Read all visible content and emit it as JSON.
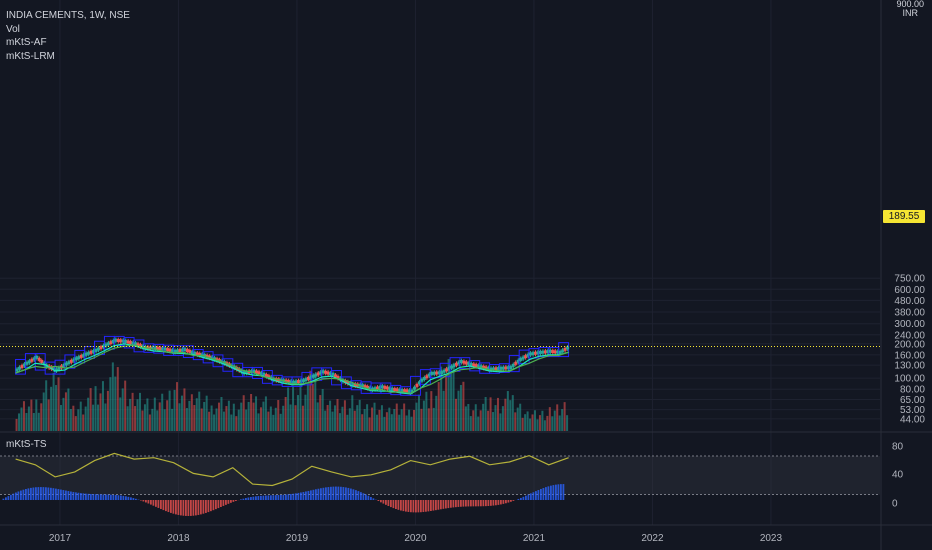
{
  "legend": {
    "symbol": "INDIA CEMENTS, 1W, NSE",
    "studies": [
      "Vol",
      "mKtS-AF",
      "mKtS-LRM"
    ]
  },
  "indicator_label": "mKtS-TS",
  "currency": {
    "top": "900.00",
    "unit": "INR"
  },
  "last_price": "189.55",
  "colors": {
    "background": "#131722",
    "grid": "#1e2230",
    "up": "#26a69a",
    "down": "#ef5350",
    "box": "#2525ff",
    "line_fast": "#1de9b6",
    "line_slow": "#4caf50",
    "osc": "#b5b23a",
    "price_tag": "#f5e533"
  },
  "chart_data": [
    {
      "type": "line",
      "title": "INDIA CEMENTS, 1W, NSE",
      "scale": "log",
      "y_ticks": [
        "750.00",
        "600.00",
        "480.00",
        "380.00",
        "300.00",
        "240.00",
        "200.00",
        "160.00",
        "130.00",
        "100.00",
        "80.00",
        "65.00",
        "53.00",
        "44.00"
      ],
      "x_ticks": [
        "2017",
        "2018",
        "2019",
        "2020",
        "2021",
        "2022",
        "2023"
      ],
      "series": [
        {
          "points": [
            [
              "2016-08",
              118
            ],
            [
              "2016-09",
              135
            ],
            [
              "2016-10",
              152
            ],
            [
              "2016-11",
              128
            ],
            [
              "2016-12",
              118
            ],
            [
              "2017-01",
              133
            ],
            [
              "2017-02",
              148
            ],
            [
              "2017-03",
              162
            ],
            [
              "2017-04",
              175
            ],
            [
              "2017-05",
              195
            ],
            [
              "2017-06",
              215
            ],
            [
              "2017-07",
              210
            ],
            [
              "2017-08",
              200
            ],
            [
              "2017-09",
              185
            ],
            [
              "2017-10",
              183
            ],
            [
              "2017-11",
              180
            ],
            [
              "2017-12",
              172
            ],
            [
              "2018-01",
              178
            ],
            [
              "2018-02",
              165
            ],
            [
              "2018-03",
              158
            ],
            [
              "2018-04",
              148
            ],
            [
              "2018-05",
              137
            ],
            [
              "2018-06",
              125
            ],
            [
              "2018-07",
              112
            ],
            [
              "2018-08",
              115
            ],
            [
              "2018-09",
              108
            ],
            [
              "2018-10",
              98
            ],
            [
              "2018-11",
              95
            ],
            [
              "2018-12",
              92
            ],
            [
              "2019-01",
              95
            ],
            [
              "2019-02",
              104
            ],
            [
              "2019-03",
              114
            ],
            [
              "2019-04",
              108
            ],
            [
              "2019-05",
              95
            ],
            [
              "2019-06",
              88
            ],
            [
              "2019-07",
              86
            ],
            [
              "2019-08",
              80
            ],
            [
              "2019-09",
              84
            ],
            [
              "2019-10",
              80
            ],
            [
              "2019-11",
              78
            ],
            [
              "2019-12",
              77
            ],
            [
              "2020-01",
              96
            ],
            [
              "2020-02",
              110
            ],
            [
              "2020-03",
              112
            ],
            [
              "2020-04",
              125
            ],
            [
              "2020-05",
              140
            ],
            [
              "2020-06",
              132
            ],
            [
              "2020-07",
              126
            ],
            [
              "2020-08",
              120
            ],
            [
              "2020-09",
              122
            ],
            [
              "2020-10",
              124
            ],
            [
              "2020-11",
              146
            ],
            [
              "2020-12",
              163
            ],
            [
              "2021-01",
              168
            ],
            [
              "2021-02",
              172
            ],
            [
              "2021-03",
              168
            ],
            [
              "2021-04",
              189.55
            ]
          ]
        }
      ]
    },
    {
      "type": "bar",
      "title": "Vol",
      "x": [
        "2016-08",
        "2016-10",
        "2016-12",
        "2017-02",
        "2017-04",
        "2017-06",
        "2017-08",
        "2017-10",
        "2017-12",
        "2018-02",
        "2018-04",
        "2018-06",
        "2018-08",
        "2018-10",
        "2018-12",
        "2019-02",
        "2019-04",
        "2019-06",
        "2019-08",
        "2019-10",
        "2019-12",
        "2020-02",
        "2020-04",
        "2020-06",
        "2020-08",
        "2020-10",
        "2020-12",
        "2021-02",
        "2021-04"
      ],
      "values": [
        22,
        30,
        55,
        24,
        40,
        60,
        36,
        28,
        42,
        34,
        30,
        26,
        34,
        26,
        40,
        52,
        28,
        30,
        24,
        22,
        26,
        38,
        70,
        24,
        30,
        34,
        18,
        20,
        30
      ]
    },
    {
      "type": "line",
      "title": "mKtS-TS",
      "y_ticks": [
        "80",
        "40",
        "0"
      ],
      "series": [
        {
          "points": [
            [
              "2016-08",
              70
            ],
            [
              "2016-10",
              62
            ],
            [
              "2016-12",
              45
            ],
            [
              "2017-02",
              52
            ],
            [
              "2017-04",
              68
            ],
            [
              "2017-06",
              78
            ],
            [
              "2017-08",
              70
            ],
            [
              "2017-10",
              72
            ],
            [
              "2017-12",
              65
            ],
            [
              "2018-02",
              50
            ],
            [
              "2018-04",
              45
            ],
            [
              "2018-06",
              58
            ],
            [
              "2018-08",
              35
            ],
            [
              "2018-10",
              33
            ],
            [
              "2018-12",
              42
            ],
            [
              "2019-02",
              60
            ],
            [
              "2019-04",
              52
            ],
            [
              "2019-06",
              45
            ],
            [
              "2019-08",
              48
            ],
            [
              "2019-10",
              55
            ],
            [
              "2019-12",
              68
            ],
            [
              "2020-02",
              62
            ],
            [
              "2020-04",
              70
            ],
            [
              "2020-06",
              74
            ],
            [
              "2020-08",
              62
            ],
            [
              "2020-10",
              66
            ],
            [
              "2020-12",
              75
            ],
            [
              "2021-02",
              62
            ],
            [
              "2021-04",
              72
            ]
          ]
        }
      ]
    }
  ]
}
